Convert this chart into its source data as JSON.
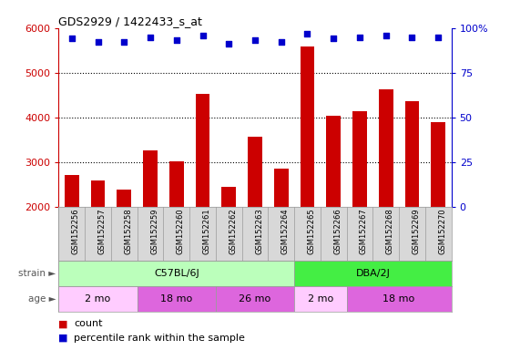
{
  "title": "GDS2929 / 1422433_s_at",
  "samples": [
    "GSM152256",
    "GSM152257",
    "GSM152258",
    "GSM152259",
    "GSM152260",
    "GSM152261",
    "GSM152262",
    "GSM152263",
    "GSM152264",
    "GSM152265",
    "GSM152266",
    "GSM152267",
    "GSM152268",
    "GSM152269",
    "GSM152270"
  ],
  "counts": [
    2720,
    2600,
    2380,
    3260,
    3020,
    4520,
    2450,
    3560,
    2860,
    5580,
    4030,
    4130,
    4620,
    4370,
    3900
  ],
  "percentile_ranks": [
    94,
    92,
    92,
    95,
    93,
    96,
    91,
    93,
    92,
    97,
    94,
    95,
    96,
    95,
    95
  ],
  "bar_color": "#cc0000",
  "dot_color": "#0000cc",
  "ylim_left": [
    2000,
    6000
  ],
  "ylim_right": [
    0,
    100
  ],
  "yticks_left": [
    2000,
    3000,
    4000,
    5000,
    6000
  ],
  "yticks_right": [
    0,
    25,
    50,
    75,
    100
  ],
  "strain_groups": [
    {
      "label": "C57BL/6J",
      "start": 0,
      "end": 8,
      "color": "#bbffbb"
    },
    {
      "label": "DBA/2J",
      "start": 9,
      "end": 14,
      "color": "#44ee44"
    }
  ],
  "age_groups": [
    {
      "label": "2 mo",
      "start": 0,
      "end": 2,
      "color": "#ffccff"
    },
    {
      "label": "18 mo",
      "start": 3,
      "end": 5,
      "color": "#dd66dd"
    },
    {
      "label": "26 mo",
      "start": 6,
      "end": 8,
      "color": "#dd66dd"
    },
    {
      "label": "2 mo",
      "start": 9,
      "end": 10,
      "color": "#ffccff"
    },
    {
      "label": "18 mo",
      "start": 11,
      "end": 14,
      "color": "#dd66dd"
    }
  ],
  "left_axis_color": "#cc0000",
  "right_axis_color": "#0000cc",
  "label_bg_color": "#d8d8d8",
  "label_border_color": "#999999"
}
